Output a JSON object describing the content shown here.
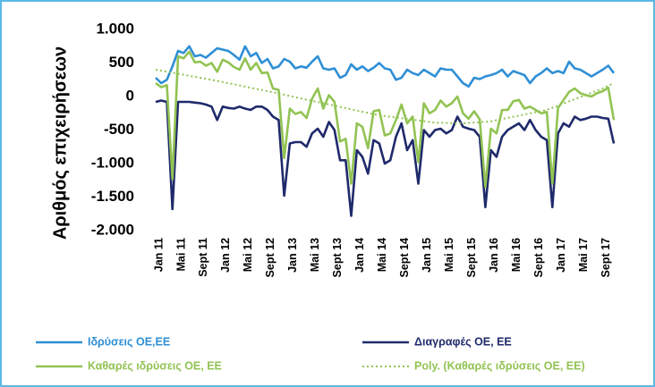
{
  "chart_data": {
    "type": "line",
    "y_label": "Αριθμός επιχειρήσεων",
    "categories": [
      "Jan 11",
      null,
      null,
      null,
      "Mai 11",
      null,
      null,
      null,
      "Sept 11",
      null,
      null,
      null,
      "Jan 12",
      null,
      null,
      null,
      "Mai 12",
      null,
      null,
      null,
      "Sept 12",
      null,
      null,
      null,
      "Jan 13",
      null,
      null,
      null,
      "Mai 13",
      null,
      null,
      null,
      "Sept 13",
      null,
      null,
      null,
      "Jan 14",
      null,
      null,
      null,
      "Mai 14",
      null,
      null,
      null,
      "Sept 14",
      null,
      null,
      null,
      "Jan 15",
      null,
      null,
      null,
      "Mai 15",
      null,
      null,
      null,
      "Sept 15",
      null,
      null,
      null,
      "Jan 16",
      null,
      null,
      null,
      "Mai 16",
      null,
      null,
      null,
      "Sept 16",
      null,
      null,
      null,
      "Jan 17",
      null,
      null,
      null,
      "Mai 17",
      null,
      null,
      null,
      "Sept 17",
      null,
      null
    ],
    "ylim": [
      -2000,
      1000
    ],
    "yticks": [
      {
        "value": 1000,
        "label": "1.000"
      },
      500,
      0,
      -500,
      {
        "value": -1000,
        "label": "-1.000"
      },
      {
        "value": -1500,
        "label": "-1.500"
      },
      {
        "value": -2000,
        "label": "-2.000"
      }
    ],
    "grid": false,
    "legend": "bottom",
    "series": [
      {
        "name": "Ιδρύσεις ΟΕ,ΕΕ",
        "color": "#2f8fd6",
        "style": "solid",
        "values": [
          280,
          200,
          250,
          450,
          680,
          650,
          750,
          600,
          620,
          580,
          650,
          720,
          700,
          680,
          620,
          550,
          750,
          600,
          650,
          500,
          560,
          420,
          450,
          560,
          520,
          420,
          450,
          430,
          520,
          600,
          420,
          400,
          420,
          280,
          320,
          480,
          400,
          450,
          380,
          430,
          500,
          420,
          400,
          250,
          280,
          400,
          350,
          320,
          400,
          350,
          300,
          420,
          400,
          400,
          300,
          200,
          150,
          280,
          260,
          300,
          320,
          350,
          400,
          300,
          380,
          350,
          320,
          200,
          300,
          350,
          420,
          350,
          380,
          350,
          520,
          420,
          400,
          350,
          300,
          350,
          400,
          460,
          350
        ]
      },
      {
        "name": "Διαγραφές ΟΕ, ΕΕ",
        "color": "#1f2a6b",
        "style": "solid",
        "values": [
          -80,
          -60,
          -80,
          -1680,
          -80,
          -80,
          -80,
          -90,
          -100,
          -120,
          -150,
          -350,
          -150,
          -170,
          -180,
          -150,
          -180,
          -200,
          -150,
          -150,
          -200,
          -300,
          -350,
          -1480,
          -700,
          -680,
          -680,
          -750,
          -550,
          -480,
          -600,
          -380,
          -500,
          -950,
          -950,
          -1780,
          -800,
          -900,
          -1150,
          -650,
          -700,
          -1000,
          -950,
          -600,
          -400,
          -800,
          -650,
          -1300,
          -500,
          -600,
          -500,
          -480,
          -550,
          -500,
          -300,
          -450,
          -480,
          -500,
          -600,
          -1650,
          -800,
          -900,
          -600,
          -500,
          -450,
          -400,
          -500,
          -350,
          -500,
          -600,
          -650,
          -1650,
          -550,
          -400,
          -450,
          -300,
          -350,
          -330,
          -300,
          -300,
          -320,
          -330,
          -700
        ]
      },
      {
        "name": "Καθαρές ιδρύσεις ΟΕ, ΕΕ",
        "color": "#92c353",
        "style": "solid",
        "values": [
          200,
          140,
          170,
          -1230,
          600,
          570,
          670,
          510,
          520,
          460,
          500,
          370,
          550,
          510,
          440,
          400,
          570,
          400,
          500,
          350,
          360,
          120,
          100,
          -920,
          -180,
          -260,
          -230,
          -320,
          -30,
          120,
          -180,
          20,
          -80,
          -670,
          -630,
          -1300,
          -400,
          -450,
          -770,
          -220,
          -200,
          -580,
          -550,
          -350,
          -120,
          -400,
          -300,
          -980,
          -100,
          -250,
          -200,
          -60,
          -150,
          -100,
          0,
          -250,
          -330,
          -220,
          -340,
          -1350,
          -480,
          -550,
          -200,
          -200,
          -70,
          -50,
          -180,
          -150,
          -200,
          -250,
          -230,
          -1300,
          -170,
          -50,
          70,
          120,
          50,
          20,
          0,
          50,
          80,
          130,
          -350
        ]
      },
      {
        "name": "Poly. (Καθαρές ιδρύσεις ΟΕ, ΕΕ)",
        "color": "#92c353",
        "style": "dotted",
        "values": [
          400,
          385,
          370,
          355,
          340,
          325,
          310,
          295,
          280,
          265,
          250,
          233,
          216,
          199,
          182,
          165,
          148,
          131,
          114,
          97,
          80,
          62,
          44,
          26,
          8,
          -10,
          -28,
          -46,
          -64,
          -82,
          -100,
          -118,
          -136,
          -154,
          -172,
          -190,
          -208,
          -226,
          -244,
          -262,
          -280,
          -291,
          -302,
          -313,
          -324,
          -335,
          -346,
          -357,
          -368,
          -379,
          -390,
          -392,
          -394,
          -396,
          -398,
          -400,
          -394,
          -388,
          -382,
          -376,
          -370,
          -353,
          -336,
          -319,
          -302,
          -285,
          -268,
          -251,
          -234,
          -217,
          -200,
          -168,
          -136,
          -104,
          -72,
          -40,
          -8,
          24,
          56,
          88,
          120,
          160,
          200
        ]
      }
    ]
  }
}
